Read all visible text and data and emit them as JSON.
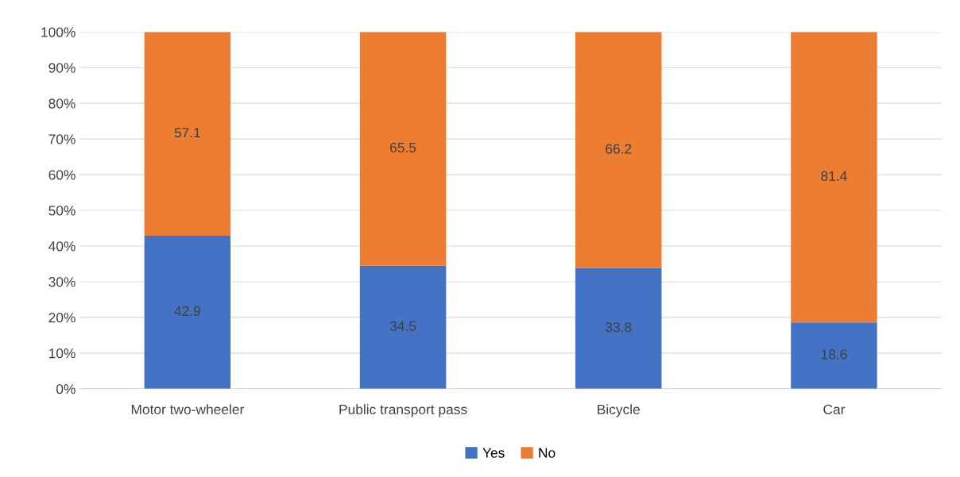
{
  "chart_data": {
    "type": "bar",
    "stacked": true,
    "categories": [
      "Motor two-wheeler",
      "Public transport pass",
      "Bicycle",
      "Car"
    ],
    "series": [
      {
        "name": "Yes",
        "color": "#4472c4",
        "values": [
          42.9,
          34.5,
          33.8,
          18.6
        ]
      },
      {
        "name": "No",
        "color": "#ed7d31",
        "values": [
          57.1,
          65.5,
          66.2,
          81.4
        ]
      }
    ],
    "ylim": [
      0,
      100
    ],
    "yticks": [
      {
        "value": 0,
        "label": "0%"
      },
      {
        "value": 10,
        "label": "10%"
      },
      {
        "value": 20,
        "label": "20%"
      },
      {
        "value": 30,
        "label": "30%"
      },
      {
        "value": 40,
        "label": "40%"
      },
      {
        "value": 50,
        "label": "50%"
      },
      {
        "value": 60,
        "label": "60%"
      },
      {
        "value": 70,
        "label": "70%"
      },
      {
        "value": 80,
        "label": "80%"
      },
      {
        "value": 90,
        "label": "90%"
      },
      {
        "value": 100,
        "label": "100%"
      }
    ],
    "grid": "y",
    "legend": "bottom",
    "data_labels": true
  }
}
